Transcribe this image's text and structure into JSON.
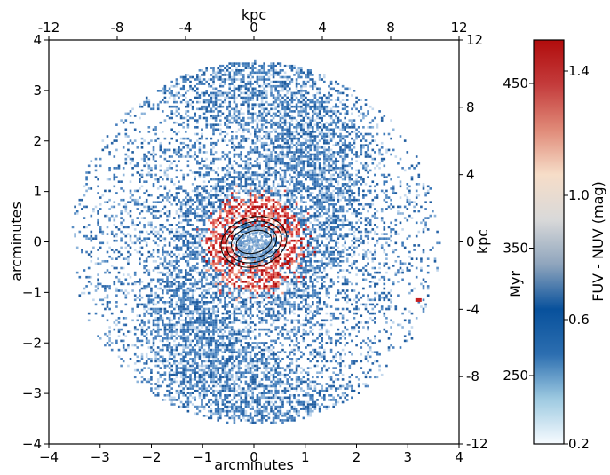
{
  "chart_data": {
    "type": "heatmap",
    "description_title": "",
    "xlabel": "arcminutes",
    "ylabel": "arcminutes",
    "xlim": [
      -4,
      4
    ],
    "ylim": [
      -4,
      4
    ],
    "x_ticks": [
      -4,
      -3,
      -2,
      -1,
      0,
      1,
      2,
      3,
      4
    ],
    "y_ticks": [
      -4,
      -3,
      -2,
      -1,
      0,
      1,
      2,
      3,
      4
    ],
    "x_tick_labels": [
      "−4",
      "−3",
      "−2",
      "−1",
      "0",
      "1",
      "2",
      "3",
      "4"
    ],
    "y_tick_labels": [
      "−4",
      "−3",
      "−2",
      "−1",
      "0",
      "1",
      "2",
      "3",
      "4"
    ],
    "secondary_x": {
      "label": "kpc",
      "lim": [
        -12,
        12
      ],
      "ticks": [
        -12,
        -8,
        -4,
        0,
        4,
        8,
        12
      ],
      "tick_labels": [
        "-12",
        "-8",
        "-4",
        "0",
        "4",
        "8",
        "12"
      ]
    },
    "secondary_y": {
      "label": "kpc",
      "lim": [
        -12,
        12
      ],
      "ticks": [
        -12,
        -8,
        -4,
        0,
        4,
        8,
        12
      ],
      "tick_labels": [
        "-12",
        "-8",
        "-4",
        "0",
        "4",
        "8",
        "12"
      ]
    },
    "colorbar": {
      "label": "FUV - NUV (mag)",
      "secondary_label": "Myr",
      "range": [
        0.2,
        1.5
      ],
      "ticks": [
        0.2,
        0.6,
        1.0,
        1.4
      ],
      "tick_labels": [
        "0.2",
        "0.6",
        "1.0",
        "1.4"
      ],
      "secondary_ticks_at_value": [
        0.42,
        0.83,
        1.36
      ],
      "secondary_tick_labels": [
        "250",
        "350",
        "450"
      ],
      "colormap": [
        "#f7fbff",
        "#9ecae1",
        "#2c6eb0",
        "#08519c",
        "#8fa5bd",
        "#d9d9d9",
        "#f6ddc8",
        "#e08a78",
        "#c43c3c",
        "#b10c0c"
      ]
    },
    "colors": {
      "outer_disk": "#2a65a8",
      "inner_ring": "#c81e1e",
      "center": "#6a9acd",
      "contours": "#000000"
    },
    "features": {
      "disk_radius_arcmin": 3.6,
      "red_ring_radius_arcmin": 0.7,
      "central_core_radius_arcmin": 0.35,
      "spiral_arms": 2,
      "isolated_red_source": {
        "x": 3.2,
        "y": -1.15
      },
      "contour_levels": 4
    }
  }
}
